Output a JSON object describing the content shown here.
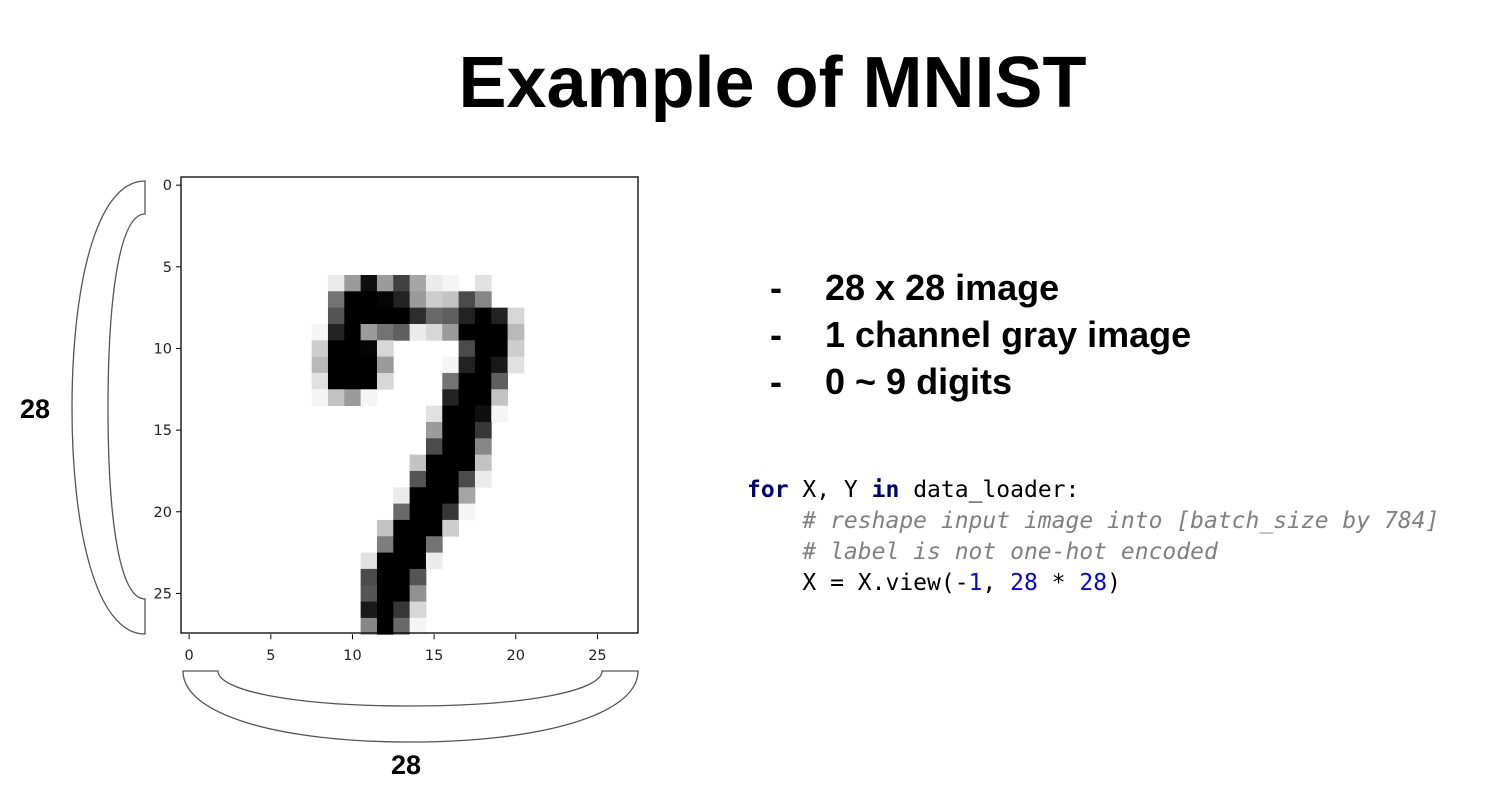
{
  "slide": {
    "title": "Example of MNIST"
  },
  "figure": {
    "side_brace_label": "28",
    "bottom_brace_label": "28",
    "y_ticks": [
      "0",
      "5",
      "10",
      "15",
      "20",
      "25"
    ],
    "x_ticks": [
      "0",
      "5",
      "10",
      "15",
      "20",
      "25"
    ],
    "pixel_grid": [
      [
        0,
        0,
        0,
        0,
        0,
        0,
        0,
        0,
        0,
        0,
        0,
        0,
        0,
        0,
        0,
        0,
        0,
        0,
        0,
        0,
        0,
        0,
        0,
        0,
        0,
        0,
        0,
        0
      ],
      [
        0,
        0,
        0,
        0,
        0,
        0,
        0,
        0,
        0,
        0,
        0,
        0,
        0,
        0,
        0,
        0,
        0,
        0,
        0,
        0,
        0,
        0,
        0,
        0,
        0,
        0,
        0,
        0
      ],
      [
        0,
        0,
        0,
        0,
        0,
        0,
        0,
        0,
        0,
        0,
        0,
        0,
        0,
        0,
        0,
        0,
        0,
        0,
        0,
        0,
        0,
        0,
        0,
        0,
        0,
        0,
        0,
        0
      ],
      [
        0,
        0,
        0,
        0,
        0,
        0,
        0,
        0,
        0,
        0,
        0,
        0,
        0,
        0,
        0,
        0,
        0,
        0,
        0,
        0,
        0,
        0,
        0,
        0,
        0,
        0,
        0,
        0
      ],
      [
        0,
        0,
        0,
        0,
        0,
        0,
        0,
        0,
        0,
        0,
        0,
        0,
        0,
        0,
        0,
        0,
        0,
        0,
        0,
        0,
        0,
        0,
        0,
        0,
        0,
        0,
        0,
        0
      ],
      [
        0,
        0,
        0,
        0,
        0,
        0,
        0,
        0,
        0,
        0,
        0,
        0,
        0,
        0,
        0,
        0,
        0,
        0,
        0,
        0,
        0,
        0,
        0,
        0,
        0,
        0,
        0,
        0
      ],
      [
        0,
        0,
        0,
        0,
        0,
        0,
        0,
        0,
        0,
        20,
        100,
        240,
        100,
        190,
        90,
        20,
        10,
        0,
        30,
        0,
        0,
        0,
        0,
        0,
        0,
        0,
        0,
        0
      ],
      [
        0,
        0,
        0,
        0,
        0,
        0,
        0,
        0,
        0,
        140,
        255,
        255,
        250,
        220,
        100,
        50,
        60,
        180,
        120,
        0,
        0,
        0,
        0,
        0,
        0,
        0,
        0,
        0
      ],
      [
        0,
        0,
        0,
        0,
        0,
        0,
        0,
        0,
        0,
        170,
        255,
        255,
        255,
        255,
        210,
        150,
        160,
        220,
        255,
        220,
        40,
        0,
        0,
        0,
        0,
        0,
        0,
        0
      ],
      [
        0,
        0,
        0,
        0,
        0,
        0,
        0,
        0,
        10,
        220,
        255,
        100,
        140,
        160,
        20,
        40,
        100,
        255,
        255,
        255,
        70,
        0,
        0,
        0,
        0,
        0,
        0,
        0
      ],
      [
        0,
        0,
        0,
        0,
        0,
        0,
        0,
        0,
        50,
        255,
        255,
        250,
        40,
        0,
        0,
        0,
        0,
        180,
        255,
        255,
        50,
        0,
        0,
        0,
        0,
        0,
        0,
        0
      ],
      [
        0,
        0,
        0,
        0,
        0,
        0,
        0,
        0,
        70,
        255,
        255,
        255,
        100,
        0,
        0,
        0,
        10,
        220,
        255,
        230,
        30,
        0,
        0,
        0,
        0,
        0,
        0,
        0
      ],
      [
        0,
        0,
        0,
        0,
        0,
        0,
        0,
        0,
        30,
        255,
        255,
        255,
        40,
        0,
        0,
        0,
        140,
        255,
        255,
        160,
        0,
        0,
        0,
        0,
        0,
        0,
        0,
        0
      ],
      [
        0,
        0,
        0,
        0,
        0,
        0,
        0,
        0,
        10,
        60,
        100,
        10,
        0,
        0,
        0,
        0,
        220,
        255,
        255,
        60,
        0,
        0,
        0,
        0,
        0,
        0,
        0,
        0
      ],
      [
        0,
        0,
        0,
        0,
        0,
        0,
        0,
        0,
        0,
        0,
        0,
        0,
        0,
        0,
        0,
        30,
        255,
        255,
        240,
        10,
        0,
        0,
        0,
        0,
        0,
        0,
        0,
        0
      ],
      [
        0,
        0,
        0,
        0,
        0,
        0,
        0,
        0,
        0,
        0,
        0,
        0,
        0,
        0,
        0,
        100,
        255,
        255,
        200,
        0,
        0,
        0,
        0,
        0,
        0,
        0,
        0,
        0
      ],
      [
        0,
        0,
        0,
        0,
        0,
        0,
        0,
        0,
        0,
        0,
        0,
        0,
        0,
        0,
        0,
        180,
        255,
        255,
        120,
        0,
        0,
        0,
        0,
        0,
        0,
        0,
        0,
        0
      ],
      [
        0,
        0,
        0,
        0,
        0,
        0,
        0,
        0,
        0,
        0,
        0,
        0,
        0,
        0,
        60,
        255,
        255,
        255,
        60,
        0,
        0,
        0,
        0,
        0,
        0,
        0,
        0,
        0
      ],
      [
        0,
        0,
        0,
        0,
        0,
        0,
        0,
        0,
        0,
        0,
        0,
        0,
        0,
        0,
        170,
        255,
        255,
        180,
        20,
        0,
        0,
        0,
        0,
        0,
        0,
        0,
        0,
        0
      ],
      [
        0,
        0,
        0,
        0,
        0,
        0,
        0,
        0,
        0,
        0,
        0,
        0,
        0,
        20,
        255,
        255,
        255,
        90,
        0,
        0,
        0,
        0,
        0,
        0,
        0,
        0,
        0,
        0
      ],
      [
        0,
        0,
        0,
        0,
        0,
        0,
        0,
        0,
        0,
        0,
        0,
        0,
        0,
        150,
        255,
        255,
        200,
        10,
        0,
        0,
        0,
        0,
        0,
        0,
        0,
        0,
        0,
        0
      ],
      [
        0,
        0,
        0,
        0,
        0,
        0,
        0,
        0,
        0,
        0,
        0,
        0,
        60,
        255,
        255,
        255,
        50,
        0,
        0,
        0,
        0,
        0,
        0,
        0,
        0,
        0,
        0,
        0
      ],
      [
        0,
        0,
        0,
        0,
        0,
        0,
        0,
        0,
        0,
        0,
        0,
        0,
        130,
        255,
        255,
        140,
        0,
        0,
        0,
        0,
        0,
        0,
        0,
        0,
        0,
        0,
        0,
        0
      ],
      [
        0,
        0,
        0,
        0,
        0,
        0,
        0,
        0,
        0,
        0,
        0,
        30,
        255,
        255,
        255,
        20,
        0,
        0,
        0,
        0,
        0,
        0,
        0,
        0,
        0,
        0,
        0,
        0
      ],
      [
        0,
        0,
        0,
        0,
        0,
        0,
        0,
        0,
        0,
        0,
        0,
        180,
        255,
        255,
        170,
        0,
        0,
        0,
        0,
        0,
        0,
        0,
        0,
        0,
        0,
        0,
        0,
        0
      ],
      [
        0,
        0,
        0,
        0,
        0,
        0,
        0,
        0,
        0,
        0,
        0,
        170,
        255,
        255,
        110,
        0,
        0,
        0,
        0,
        0,
        0,
        0,
        0,
        0,
        0,
        0,
        0,
        0
      ],
      [
        0,
        0,
        0,
        0,
        0,
        0,
        0,
        0,
        0,
        0,
        0,
        230,
        255,
        200,
        40,
        0,
        0,
        0,
        0,
        0,
        0,
        0,
        0,
        0,
        0,
        0,
        0,
        0
      ],
      [
        0,
        0,
        0,
        0,
        0,
        0,
        0,
        0,
        0,
        0,
        0,
        120,
        255,
        150,
        10,
        0,
        0,
        0,
        0,
        0,
        0,
        0,
        0,
        0,
        0,
        0,
        0,
        0
      ]
    ]
  },
  "bullets": [
    {
      "dash": "-",
      "text": "28 x 28 image"
    },
    {
      "dash": "-",
      "text": "1 channel gray image"
    },
    {
      "dash": "-",
      "text": "0 ~ 9 digits"
    }
  ],
  "code": {
    "line1": {
      "kw_for": "for",
      "mid1": " X, Y ",
      "kw_in": "in",
      "rest": " data_loader:"
    },
    "line2": {
      "indent": "    ",
      "comment": "# reshape input image into [batch_size by 784]"
    },
    "line3": {
      "indent": "    ",
      "comment": "# label is not one-hot encoded"
    },
    "line4": {
      "pre": "    X = X.view(-",
      "n1": "1",
      "mid": ", ",
      "n2": "28",
      "op": " * ",
      "n3": "28",
      "post": ")"
    }
  },
  "colors": {
    "keyword": "#000080",
    "comment": "#808080",
    "number": "#0000ff"
  }
}
